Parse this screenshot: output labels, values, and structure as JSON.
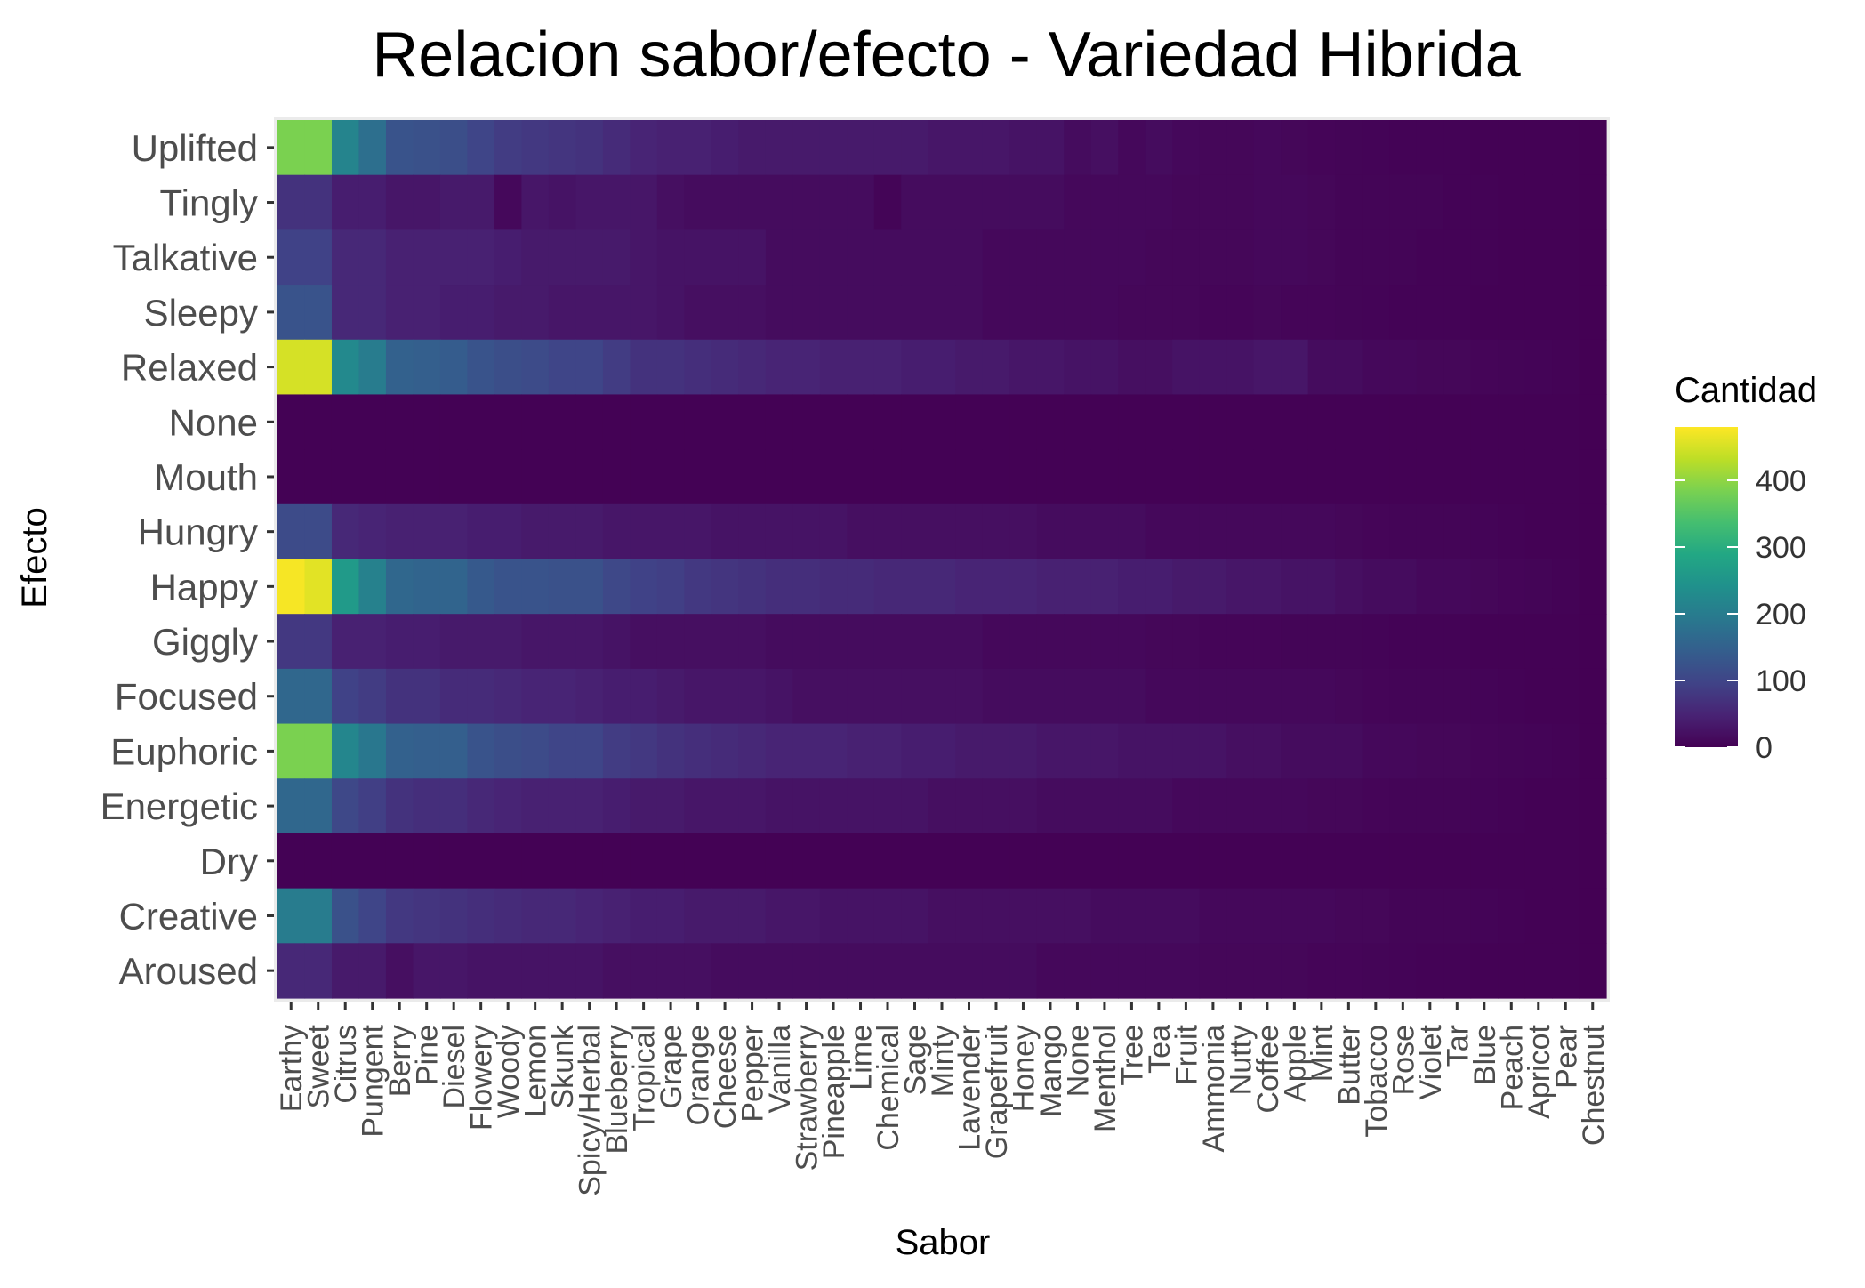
{
  "chart_data": {
    "type": "heatmap",
    "title": "Relacion sabor/efecto - Variedad Hibrida",
    "xlabel": "Sabor",
    "ylabel": "Efecto",
    "legend_title": "Cantidad",
    "legend_position": "right",
    "colorscale": "viridis",
    "color_range": [
      0,
      480
    ],
    "legend_ticks": [
      0,
      100,
      200,
      300,
      400
    ],
    "x_categories": [
      "Earthy",
      "Sweet",
      "Citrus",
      "Pungent",
      "Berry",
      "Pine",
      "Diesel",
      "Flowery",
      "Woody",
      "Lemon",
      "Skunk",
      "Spicy/Herbal",
      "Blueberry",
      "Tropical",
      "Grape",
      "Orange",
      "Cheese",
      "Pepper",
      "Vanilla",
      "Strawberry",
      "Pineapple",
      "Lime",
      "Chemical",
      "Sage",
      "Minty",
      "Lavender",
      "Grapefruit",
      "Honey",
      "Mango",
      "None",
      "Menthol",
      "Tree",
      "Tea",
      "Fruit",
      "Ammonia",
      "Nutty",
      "Coffee",
      "Apple",
      "Mint",
      "Butter",
      "Tobacco",
      "Rose",
      "Violet",
      "Tar",
      "Blue",
      "Peach",
      "Apricot",
      "Pear",
      "Chestnut"
    ],
    "y_categories": [
      "Uplifted",
      "Tingly",
      "Talkative",
      "Sleepy",
      "Relaxed",
      "None",
      "Mouth",
      "Hungry",
      "Happy",
      "Giggly",
      "Focused",
      "Euphoric",
      "Energetic",
      "Dry",
      "Creative",
      "Aroused"
    ],
    "values": [
      [
        385,
        385,
        215,
        175,
        125,
        120,
        115,
        100,
        85,
        80,
        75,
        70,
        60,
        50,
        45,
        45,
        40,
        35,
        35,
        35,
        35,
        35,
        35,
        35,
        30,
        30,
        30,
        25,
        25,
        15,
        20,
        10,
        15,
        10,
        8,
        8,
        10,
        8,
        6,
        5,
        4,
        3,
        3,
        3,
        2,
        2,
        2,
        1,
        0
      ],
      [
        70,
        70,
        40,
        40,
        30,
        30,
        35,
        35,
        10,
        30,
        25,
        30,
        30,
        30,
        20,
        15,
        15,
        15,
        15,
        15,
        15,
        15,
        5,
        15,
        15,
        15,
        15,
        15,
        15,
        10,
        10,
        10,
        10,
        8,
        8,
        8,
        10,
        10,
        8,
        5,
        5,
        5,
        5,
        3,
        3,
        2,
        2,
        1,
        0
      ],
      [
        95,
        95,
        55,
        55,
        45,
        45,
        45,
        45,
        40,
        35,
        35,
        35,
        35,
        30,
        25,
        25,
        25,
        25,
        15,
        15,
        15,
        15,
        15,
        15,
        15,
        15,
        10,
        10,
        10,
        10,
        10,
        10,
        8,
        8,
        8,
        8,
        10,
        10,
        8,
        5,
        5,
        5,
        3,
        3,
        3,
        2,
        2,
        1,
        0
      ],
      [
        125,
        125,
        55,
        55,
        45,
        45,
        40,
        40,
        35,
        35,
        30,
        30,
        30,
        30,
        25,
        20,
        20,
        20,
        15,
        15,
        15,
        15,
        15,
        15,
        15,
        15,
        10,
        10,
        10,
        10,
        10,
        8,
        8,
        8,
        6,
        6,
        8,
        6,
        6,
        5,
        4,
        3,
        3,
        3,
        2,
        2,
        1,
        1,
        0
      ],
      [
        450,
        450,
        225,
        200,
        150,
        145,
        140,
        125,
        115,
        110,
        100,
        100,
        85,
        70,
        70,
        65,
        60,
        55,
        50,
        50,
        45,
        45,
        45,
        40,
        40,
        35,
        35,
        30,
        30,
        25,
        25,
        20,
        20,
        25,
        25,
        25,
        30,
        30,
        15,
        15,
        10,
        10,
        8,
        8,
        6,
        5,
        4,
        3,
        0
      ],
      [
        1,
        1,
        1,
        1,
        1,
        1,
        1,
        1,
        1,
        1,
        1,
        1,
        1,
        1,
        1,
        1,
        1,
        1,
        1,
        1,
        1,
        1,
        1,
        1,
        1,
        1,
        1,
        1,
        1,
        1,
        1,
        1,
        1,
        1,
        1,
        1,
        1,
        1,
        1,
        1,
        1,
        1,
        1,
        1,
        1,
        1,
        1,
        1,
        0
      ],
      [
        1,
        1,
        1,
        1,
        1,
        1,
        1,
        1,
        1,
        1,
        1,
        1,
        1,
        1,
        1,
        1,
        1,
        1,
        1,
        1,
        1,
        1,
        1,
        1,
        1,
        1,
        1,
        1,
        1,
        1,
        1,
        1,
        1,
        1,
        1,
        1,
        1,
        1,
        1,
        1,
        1,
        1,
        1,
        1,
        1,
        1,
        1,
        1,
        0
      ],
      [
        110,
        110,
        55,
        50,
        45,
        45,
        45,
        40,
        40,
        35,
        35,
        35,
        30,
        30,
        30,
        30,
        25,
        25,
        25,
        25,
        25,
        20,
        20,
        20,
        20,
        20,
        20,
        20,
        15,
        15,
        15,
        15,
        10,
        10,
        10,
        10,
        10,
        10,
        10,
        8,
        6,
        5,
        5,
        5,
        4,
        3,
        2,
        1,
        0
      ],
      [
        475,
        460,
        260,
        210,
        160,
        155,
        155,
        135,
        125,
        125,
        120,
        120,
        105,
        95,
        90,
        80,
        75,
        70,
        65,
        65,
        60,
        60,
        55,
        55,
        55,
        50,
        50,
        50,
        45,
        45,
        45,
        40,
        40,
        35,
        35,
        30,
        30,
        25,
        25,
        20,
        15,
        15,
        10,
        10,
        8,
        6,
        5,
        3,
        0
      ],
      [
        80,
        80,
        45,
        45,
        40,
        40,
        35,
        35,
        35,
        30,
        30,
        30,
        25,
        20,
        20,
        20,
        20,
        20,
        15,
        15,
        15,
        15,
        15,
        15,
        15,
        15,
        10,
        10,
        10,
        10,
        10,
        10,
        8,
        8,
        6,
        6,
        6,
        5,
        5,
        5,
        4,
        3,
        3,
        3,
        2,
        2,
        1,
        1,
        0
      ],
      [
        160,
        160,
        95,
        85,
        70,
        70,
        60,
        60,
        55,
        50,
        50,
        45,
        40,
        40,
        35,
        30,
        30,
        30,
        25,
        20,
        20,
        20,
        20,
        20,
        20,
        20,
        15,
        15,
        15,
        15,
        15,
        15,
        10,
        10,
        10,
        10,
        10,
        10,
        10,
        8,
        6,
        5,
        5,
        5,
        4,
        3,
        2,
        1,
        0
      ],
      [
        385,
        385,
        220,
        190,
        150,
        145,
        145,
        125,
        115,
        110,
        100,
        100,
        85,
        80,
        70,
        65,
        60,
        55,
        50,
        50,
        50,
        45,
        45,
        40,
        40,
        35,
        35,
        35,
        30,
        30,
        30,
        25,
        25,
        25,
        25,
        20,
        20,
        15,
        15,
        15,
        10,
        10,
        8,
        8,
        6,
        5,
        4,
        3,
        0
      ],
      [
        160,
        160,
        105,
        90,
        70,
        65,
        65,
        55,
        50,
        45,
        45,
        45,
        40,
        35,
        35,
        30,
        30,
        30,
        25,
        25,
        25,
        25,
        25,
        25,
        20,
        20,
        20,
        20,
        15,
        15,
        15,
        15,
        15,
        10,
        10,
        10,
        10,
        10,
        8,
        8,
        6,
        5,
        5,
        5,
        4,
        3,
        2,
        1,
        0
      ],
      [
        1,
        1,
        1,
        1,
        1,
        1,
        1,
        1,
        1,
        1,
        1,
        1,
        1,
        1,
        1,
        1,
        1,
        1,
        1,
        1,
        1,
        1,
        1,
        1,
        1,
        1,
        1,
        1,
        1,
        1,
        1,
        1,
        1,
        1,
        1,
        1,
        1,
        1,
        1,
        1,
        1,
        1,
        1,
        1,
        1,
        1,
        1,
        1,
        0
      ],
      [
        200,
        200,
        120,
        100,
        80,
        75,
        70,
        65,
        60,
        55,
        55,
        50,
        45,
        40,
        40,
        35,
        35,
        35,
        30,
        30,
        25,
        25,
        25,
        25,
        20,
        20,
        20,
        20,
        20,
        20,
        15,
        15,
        15,
        15,
        10,
        10,
        10,
        10,
        10,
        8,
        8,
        5,
        5,
        5,
        4,
        3,
        2,
        1,
        0
      ],
      [
        55,
        55,
        35,
        35,
        20,
        30,
        30,
        25,
        25,
        25,
        25,
        25,
        20,
        20,
        20,
        20,
        15,
        15,
        15,
        15,
        15,
        15,
        15,
        15,
        15,
        15,
        15,
        15,
        10,
        10,
        10,
        10,
        10,
        10,
        8,
        8,
        8,
        8,
        6,
        6,
        5,
        4,
        3,
        3,
        2,
        2,
        1,
        1,
        0
      ]
    ]
  }
}
